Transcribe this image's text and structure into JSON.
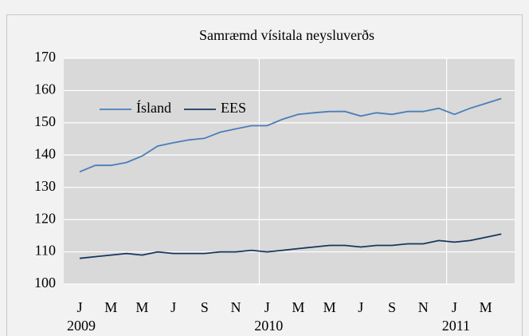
{
  "chart_data": {
    "type": "line",
    "title": "Samræmd vísitala neysluverðs",
    "categories": [
      "J",
      null,
      "M",
      null,
      "M",
      null,
      "J",
      null,
      "S",
      null,
      "N",
      null,
      "J",
      null,
      "M",
      null,
      "M",
      null,
      "J",
      null,
      "S",
      null,
      "N",
      null,
      "J",
      null,
      "M",
      null
    ],
    "groups": [
      {
        "label": "2009",
        "span": 12
      },
      {
        "label": "2010",
        "span": 12
      },
      {
        "label": "2011",
        "span": 4
      }
    ],
    "series": [
      {
        "name": "Ísland",
        "color": "#4a7ebb",
        "values": [
          134.8,
          136.8,
          136.8,
          137.7,
          139.7,
          142.8,
          143.8,
          144.7,
          145.2,
          147.1,
          148.1,
          149.1,
          149.1,
          151.1,
          152.6,
          153.1,
          153.5,
          153.5,
          152.1,
          153.1,
          152.6,
          153.5,
          153.5,
          154.5,
          152.6,
          154.5,
          156,
          157.5
        ]
      },
      {
        "name": "EES",
        "color": "#17375e",
        "values": [
          108,
          108.5,
          109,
          109.5,
          109,
          110,
          109.5,
          109.5,
          109.5,
          110,
          110,
          110.5,
          110,
          110.5,
          111,
          111.5,
          112,
          112,
          111.5,
          112,
          112,
          112.5,
          112.5,
          113.5,
          113,
          113.5,
          114.5,
          115.5
        ]
      }
    ],
    "ylim": [
      100,
      170
    ],
    "yticks": [
      100,
      110,
      120,
      130,
      140,
      150,
      160,
      170
    ],
    "grid": true,
    "legend": "upper left"
  }
}
